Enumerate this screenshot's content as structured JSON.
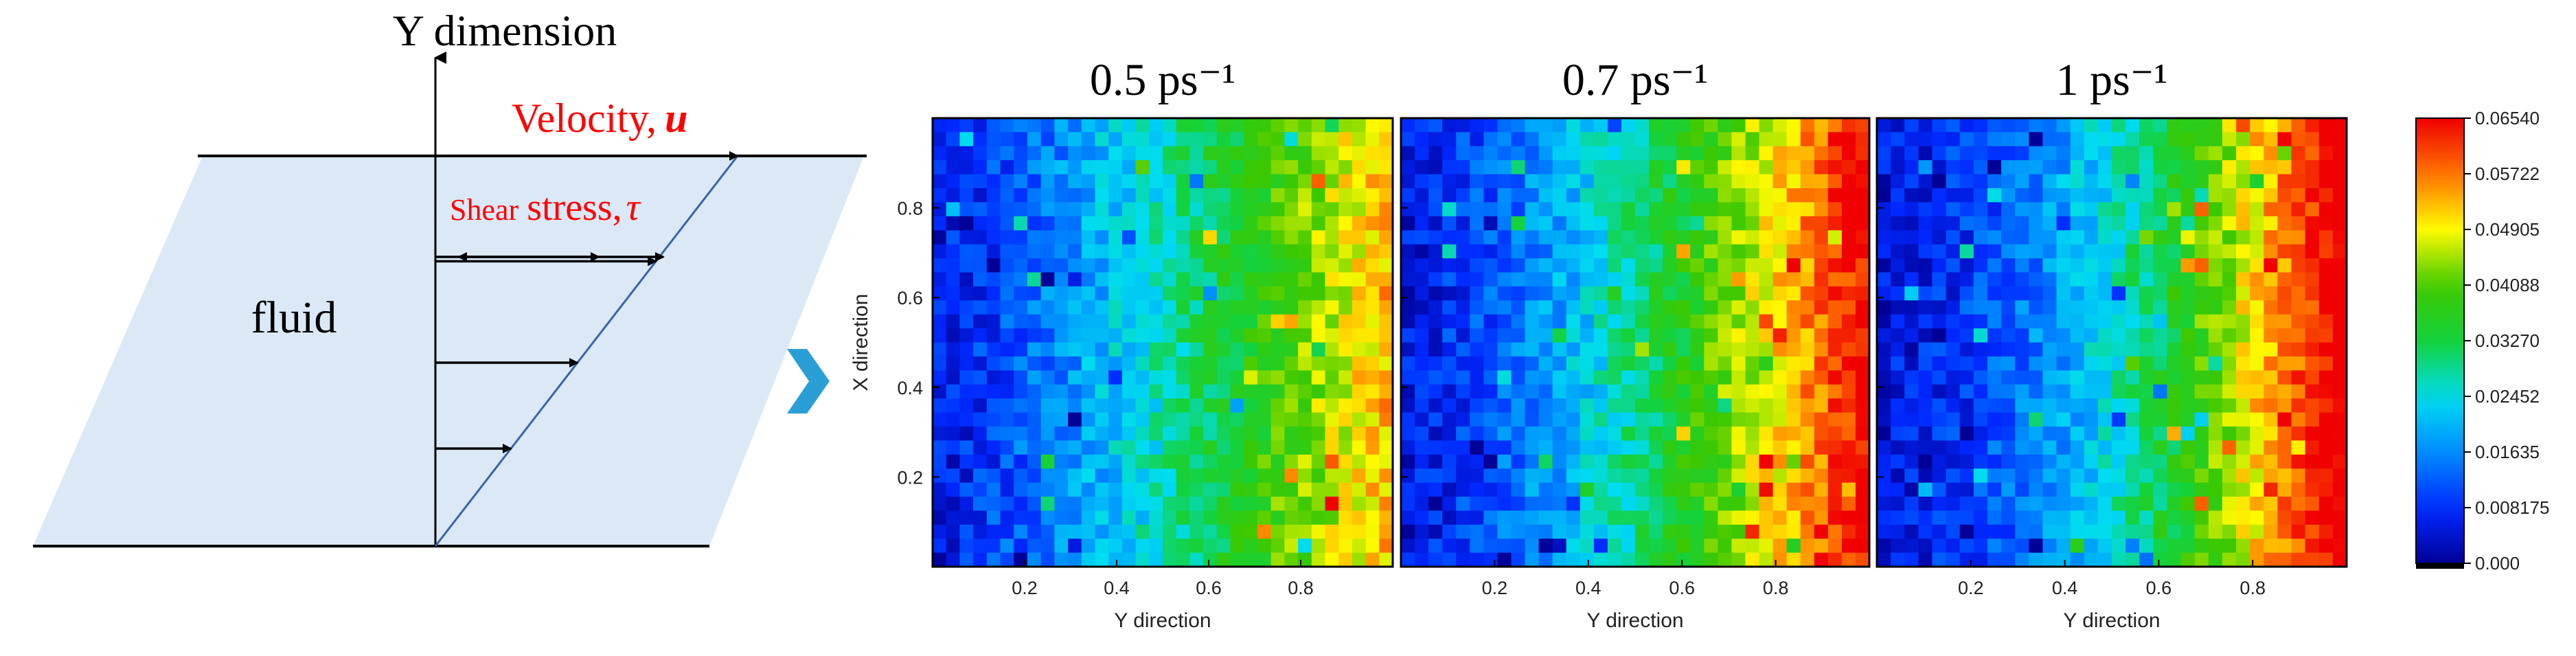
{
  "schematic": {
    "y_axis_label": "Y dimension",
    "velocity_label": "Velocity,",
    "velocity_symbol": "u",
    "shear_small": "Shear",
    "shear_large": "stress,",
    "shear_symbol": "τ",
    "fluid_label": "fluid",
    "velocity_profile_fractions": [
      0.25,
      0.47,
      0.73
    ],
    "colors": {
      "fluid": "#dbe9f6",
      "accent": "#ff0000",
      "arrow_chevron": "#2a9fd6"
    }
  },
  "panels": [
    {
      "title": "0.5 ps⁻¹",
      "xlabel": "Y direction",
      "ylabel": "X direction"
    },
    {
      "title": "0.7 ps⁻¹",
      "xlabel": "Y direction",
      "ylabel": ""
    },
    {
      "title": "1 ps⁻¹",
      "xlabel": "Y direction",
      "ylabel": ""
    }
  ],
  "chart_data": {
    "type": "heatmap",
    "x_ticks": [
      0.2,
      0.4,
      0.6,
      0.8
    ],
    "y_ticks": [
      0.2,
      0.4,
      0.6,
      0.8
    ],
    "xlim": [
      0,
      1
    ],
    "ylim": [
      0,
      1
    ],
    "shear_rates": [
      0.5,
      0.7,
      1.0
    ],
    "colorbar": {
      "ticks": [
        "0.06540",
        "0.05722",
        "0.04905",
        "0.04088",
        "0.03270",
        "0.02452",
        "0.01635",
        "0.008175",
        "0.000"
      ],
      "min": 0,
      "max": 0.0654
    }
  }
}
